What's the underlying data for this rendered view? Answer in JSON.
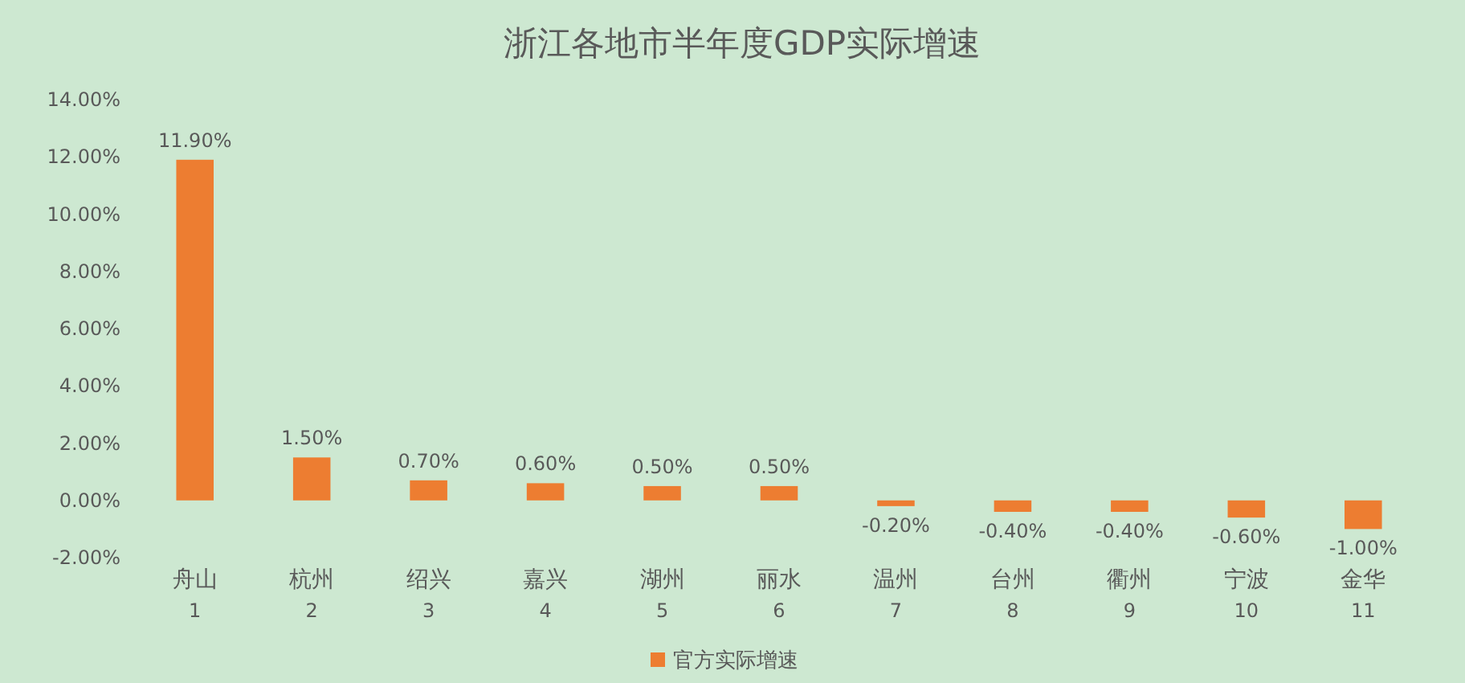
{
  "chart_data": {
    "type": "bar",
    "title": "浙江各地市半年度GDP实际增速",
    "categories": [
      "舟山\n1",
      "杭州\n2",
      "绍兴\n3",
      "嘉兴\n4",
      "湖州\n5",
      "丽水\n6",
      "温州\n7",
      "台州\n8",
      "衢州\n9",
      "宁波\n10",
      "金华\n11"
    ],
    "series": [
      {
        "name": "官方实际增速",
        "color": "#ed7d31",
        "values": [
          11.9,
          1.5,
          0.7,
          0.6,
          0.5,
          0.5,
          -0.2,
          -0.4,
          -0.4,
          -0.6,
          -1.0
        ],
        "value_labels": [
          "11.90%",
          "1.50%",
          "0.70%",
          "0.60%",
          "0.50%",
          "0.50%",
          "-0.20%",
          "-0.40%",
          "-0.40%",
          "-0.60%",
          "-1.00%"
        ]
      }
    ],
    "ylim": [
      -2,
      14
    ],
    "yticks": [
      {
        "value": -2,
        "label": "-2.00%"
      },
      {
        "value": 0,
        "label": "0.00%"
      },
      {
        "value": 2,
        "label": "2.00%"
      },
      {
        "value": 4,
        "label": "4.00%"
      },
      {
        "value": 6,
        "label": "6.00%"
      },
      {
        "value": 8,
        "label": "8.00%"
      },
      {
        "value": 10,
        "label": "10.00%"
      },
      {
        "value": 12,
        "label": "12.00%"
      },
      {
        "value": 14,
        "label": "14.00%"
      }
    ],
    "legend": "bottom"
  }
}
